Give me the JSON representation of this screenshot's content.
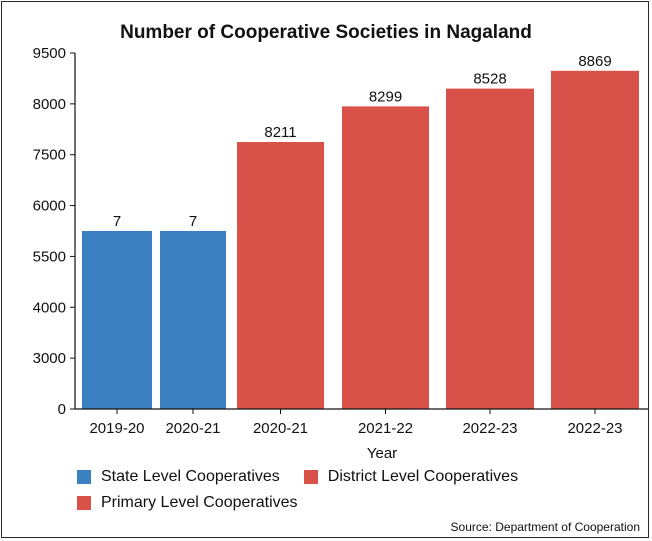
{
  "chart_data": {
    "type": "bar",
    "title": "Number of Cooperative Societies in Nagaland",
    "xlabel": "Year",
    "ylabel": "",
    "y_ticks": [
      "0",
      "3000",
      "4000",
      "5500",
      "6000",
      "7500",
      "8000",
      "9500"
    ],
    "categories": [
      "2019-20",
      "2020-21",
      "2020-21",
      "2021-22",
      "2022-23",
      "2022-23"
    ],
    "data_labels": [
      "7",
      "7",
      "8211",
      "8299",
      "8528",
      "8869"
    ],
    "bar_levels": [
      0.5,
      0.5,
      0.75,
      0.85,
      0.9,
      0.95
    ],
    "bar_series": [
      0,
      0,
      1,
      1,
      1,
      1
    ],
    "series": [
      {
        "name": "State Level Cooperatives",
        "color": "#3a7fc0"
      },
      {
        "name": "District Level Cooperatives",
        "color": "#d9524a"
      },
      {
        "name": "Primary Level Cooperatives",
        "color": "#d9524a"
      }
    ],
    "grid": false,
    "legend_position": "bottom"
  },
  "source": "Source: Department of Cooperation"
}
